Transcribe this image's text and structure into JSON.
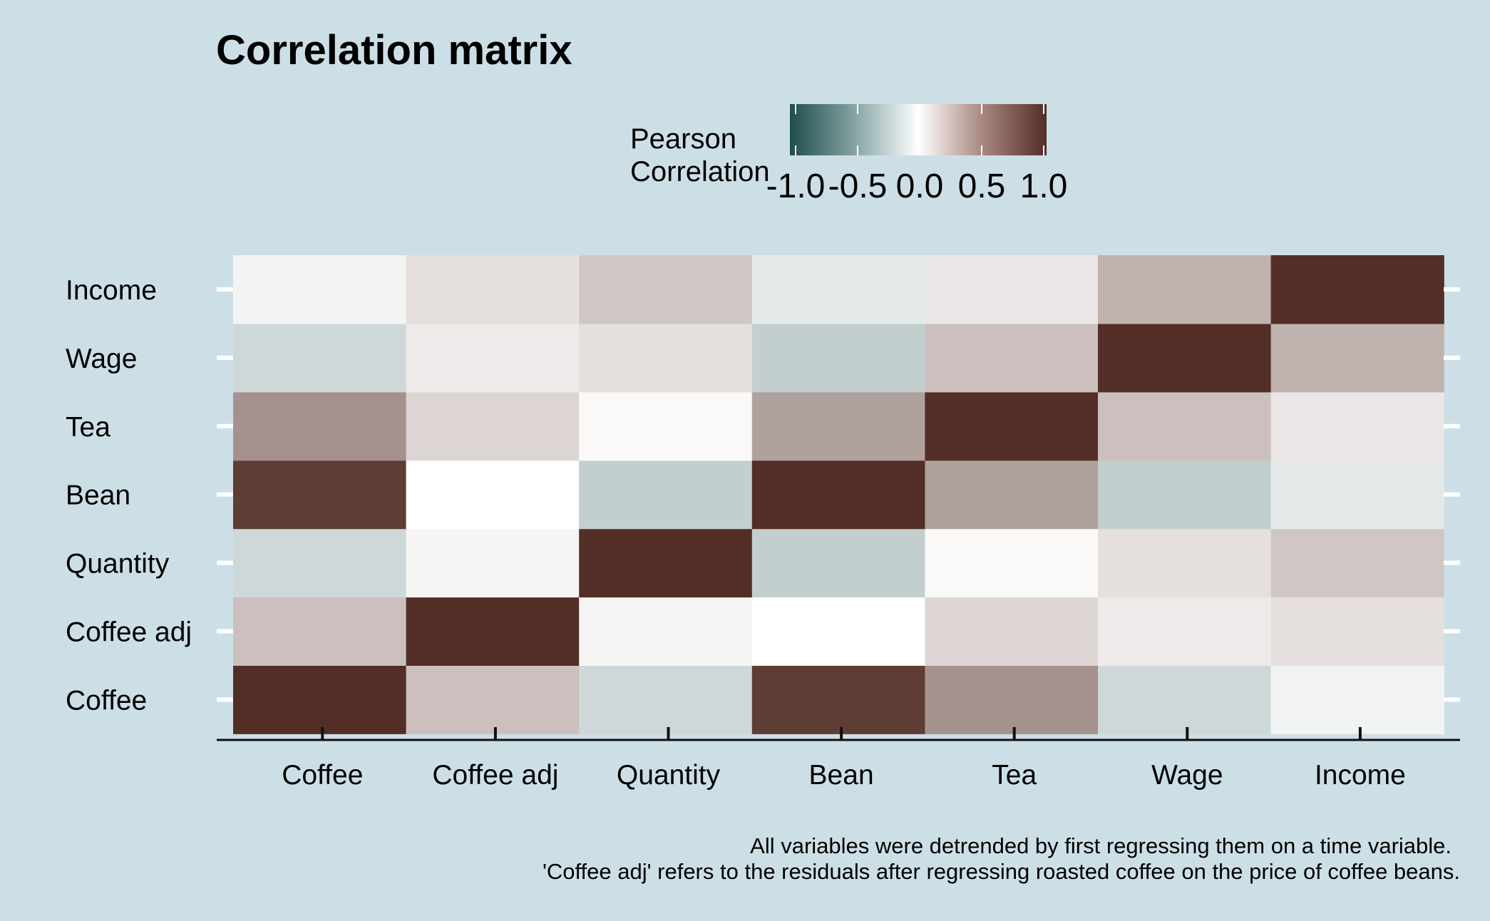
{
  "chart_data": {
    "type": "heatmap",
    "title": "Correlation matrix",
    "legend": {
      "title_lines": [
        "Pearson",
        "Correlation"
      ],
      "ticks": [
        "-1.0",
        "-0.5",
        "0.0",
        "0.5",
        "1.0"
      ],
      "range": [
        -1,
        1
      ],
      "placement": "top"
    },
    "x_labels": [
      "Coffee",
      "Coffee adj",
      "Quantity",
      "Bean",
      "Tea",
      "Wage",
      "Income"
    ],
    "y_labels": [
      "Coffee",
      "Coffee adj",
      "Quantity",
      "Bean",
      "Tea",
      "Wage",
      "Income"
    ],
    "matrix": [
      [
        1.0,
        0.3,
        -0.22,
        0.93,
        0.52,
        -0.22,
        -0.06
      ],
      [
        0.3,
        1.0,
        0.05,
        0.0,
        0.2,
        0.1,
        0.15
      ],
      [
        -0.22,
        0.05,
        1.0,
        -0.27,
        0.03,
        0.15,
        0.27
      ],
      [
        0.93,
        0.0,
        -0.27,
        1.0,
        0.45,
        -0.27,
        -0.12
      ],
      [
        0.52,
        0.2,
        0.03,
        0.45,
        1.0,
        0.3,
        0.12
      ],
      [
        -0.22,
        0.1,
        0.15,
        -0.27,
        0.3,
        1.0,
        0.37
      ],
      [
        -0.06,
        0.15,
        0.27,
        -0.12,
        0.12,
        0.37,
        1.0
      ]
    ],
    "caption_lines": [
      "All variables were detrended by first regressing them on a time variable.",
      "'Coffee adj' refers to the residuals after regressing roasted coffee on the price of coffee beans."
    ],
    "colors": {
      "background": "#cddfe6",
      "low": "#1f4d4d",
      "mid": "#ffffff",
      "high": "#522e26"
    }
  }
}
